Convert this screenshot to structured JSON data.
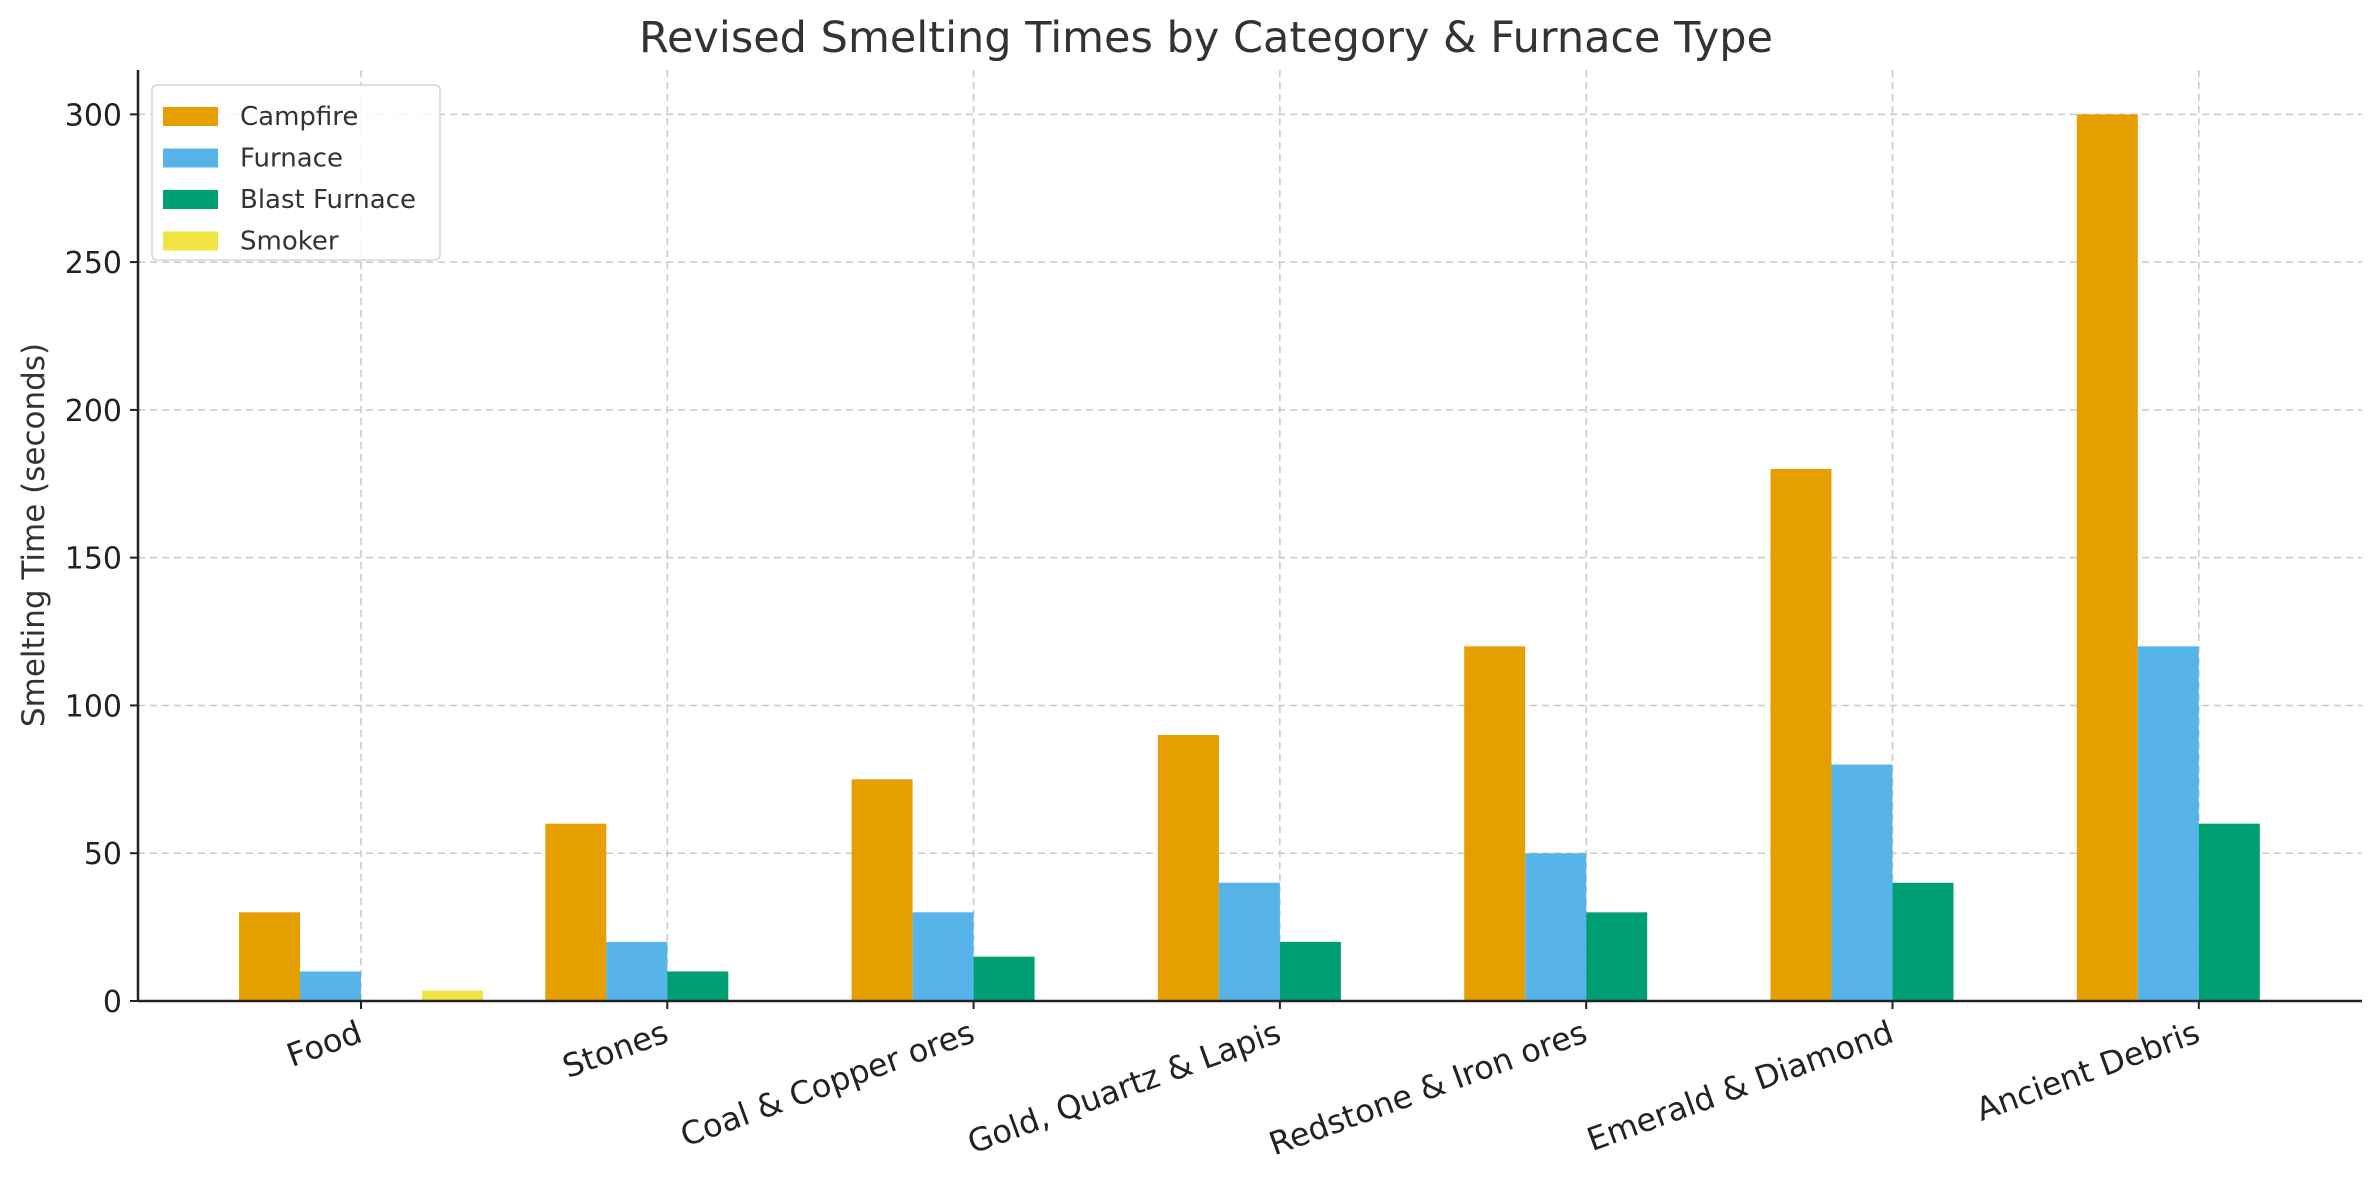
{
  "chart_data": {
    "type": "bar",
    "title": "Revised Smelting Times by Category & Furnace Type",
    "xlabel": "",
    "ylabel": "Smelting Time (seconds)",
    "ylim": [
      0,
      315
    ],
    "yticks": [
      0,
      50,
      100,
      150,
      200,
      250,
      300
    ],
    "grid": true,
    "legend_position": "top-left",
    "categories": [
      "Food",
      "Stones",
      "Coal & Copper ores",
      "Gold, Quartz & Lapis",
      "Redstone & Iron ores",
      "Emerald & Diamond",
      "Ancient Debris"
    ],
    "series": [
      {
        "name": "Campfire",
        "color": "#E69F00",
        "values": [
          30,
          60,
          75,
          90,
          120,
          180,
          300
        ]
      },
      {
        "name": "Furnace",
        "color": "#56B4E9",
        "values": [
          10,
          20,
          30,
          40,
          50,
          80,
          120
        ]
      },
      {
        "name": "Blast Furnace",
        "color": "#009E73",
        "values": [
          0,
          10,
          15,
          20,
          30,
          40,
          60
        ]
      },
      {
        "name": "Smoker",
        "color": "#F0E442",
        "values": [
          3.5,
          0,
          0,
          0,
          0,
          0,
          0
        ]
      }
    ]
  }
}
